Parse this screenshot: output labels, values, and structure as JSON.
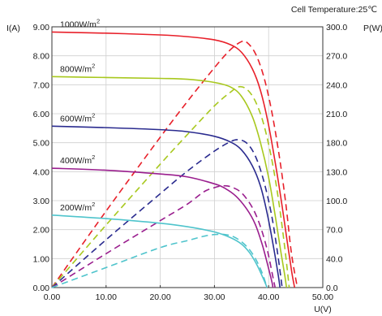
{
  "chart_data": {
    "type": "line",
    "header_note": "Cell Temperature:25℃",
    "xlabel": "U(V)",
    "ylabel_left": "I(A)",
    "ylabel_right": "P(W)",
    "xlim": [
      0,
      50
    ],
    "ylim_left": [
      0,
      9
    ],
    "ylim_right": [
      0,
      300
    ],
    "x_ticks": [
      "0.00",
      "10.00",
      "20.00",
      "30.00",
      "40.00",
      "50.00"
    ],
    "y_left_ticks": [
      "0.00",
      "1.00",
      "2.00",
      "3.00",
      "4.00",
      "5.00",
      "6.00",
      "7.00",
      "8.00",
      "9.00"
    ],
    "y_right_ticks": [
      "0.0",
      "40.0",
      "70.0",
      "100.0",
      "130.0",
      "180.0",
      "210.0",
      "240.0",
      "270.0",
      "300.0"
    ],
    "grid": true,
    "series": [
      {
        "label_text": "1000W/m",
        "label_sup": "2",
        "color": "#e8202a",
        "iv": [
          [
            0,
            8.82
          ],
          [
            10,
            8.78
          ],
          [
            20,
            8.72
          ],
          [
            25,
            8.66
          ],
          [
            30,
            8.55
          ],
          [
            33,
            8.38
          ],
          [
            35,
            8.12
          ],
          [
            37,
            7.55
          ],
          [
            38.5,
            6.8
          ],
          [
            40,
            5.6
          ],
          [
            41.5,
            4.0
          ],
          [
            42.5,
            2.8
          ],
          [
            43.5,
            1.5
          ],
          [
            44.3,
            0.5
          ],
          [
            44.8,
            0
          ]
        ],
        "pv": [
          [
            0,
            0
          ],
          [
            10,
            88
          ],
          [
            20,
            173
          ],
          [
            25,
            214
          ],
          [
            30,
            253
          ],
          [
            33,
            274
          ],
          [
            35,
            283
          ],
          [
            36,
            282
          ],
          [
            37.5,
            270
          ],
          [
            39,
            245
          ],
          [
            40.5,
            205
          ],
          [
            42,
            150
          ],
          [
            43.2,
            95
          ],
          [
            44.2,
            40
          ],
          [
            45.3,
            0
          ]
        ]
      },
      {
        "label_text": "800W/m",
        "label_sup": "2",
        "color": "#a8c81e",
        "iv": [
          [
            0,
            7.28
          ],
          [
            10,
            7.25
          ],
          [
            20,
            7.22
          ],
          [
            25,
            7.19
          ],
          [
            30,
            7.08
          ],
          [
            33,
            6.92
          ],
          [
            35,
            6.6
          ],
          [
            37,
            5.9
          ],
          [
            38.5,
            5.0
          ],
          [
            40,
            3.8
          ],
          [
            41.2,
            2.5
          ],
          [
            42.2,
            1.3
          ],
          [
            43,
            0.4
          ],
          [
            43.3,
            0
          ]
        ],
        "pv": [
          [
            0,
            0
          ],
          [
            10,
            72
          ],
          [
            20,
            142
          ],
          [
            25,
            176
          ],
          [
            30,
            209
          ],
          [
            33,
            225
          ],
          [
            34.5,
            231
          ],
          [
            36,
            228
          ],
          [
            37.5,
            215
          ],
          [
            39,
            190
          ],
          [
            40.5,
            150
          ],
          [
            41.8,
            102
          ],
          [
            43,
            45
          ],
          [
            43.8,
            0
          ]
        ]
      },
      {
        "label_text": "600W/m",
        "label_sup": "2",
        "color": "#2a2b8f",
        "iv": [
          [
            0,
            5.57
          ],
          [
            10,
            5.52
          ],
          [
            20,
            5.45
          ],
          [
            25,
            5.38
          ],
          [
            30,
            5.22
          ],
          [
            33,
            5.02
          ],
          [
            35,
            4.75
          ],
          [
            37,
            4.2
          ],
          [
            38.5,
            3.5
          ],
          [
            39.8,
            2.5
          ],
          [
            41,
            1.3
          ],
          [
            41.8,
            0.4
          ],
          [
            42.1,
            0
          ]
        ],
        "pv": [
          [
            0,
            0
          ],
          [
            10,
            55
          ],
          [
            20,
            108
          ],
          [
            25,
            134
          ],
          [
            30,
            157
          ],
          [
            33,
            168
          ],
          [
            34.5,
            170
          ],
          [
            36,
            166
          ],
          [
            37.5,
            152
          ],
          [
            39,
            125
          ],
          [
            40.5,
            85
          ],
          [
            41.6,
            42
          ],
          [
            42.5,
            0
          ]
        ]
      },
      {
        "label_text": "400W/m",
        "label_sup": "2",
        "color": "#9a1e8e",
        "iv": [
          [
            0,
            4.12
          ],
          [
            10,
            4.05
          ],
          [
            20,
            3.92
          ],
          [
            25,
            3.82
          ],
          [
            30,
            3.58
          ],
          [
            32,
            3.42
          ],
          [
            34,
            3.15
          ],
          [
            36,
            2.7
          ],
          [
            37.5,
            2.2
          ],
          [
            38.8,
            1.5
          ],
          [
            39.8,
            0.8
          ],
          [
            40.6,
            0.2
          ],
          [
            40.8,
            0
          ]
        ],
        "pv": [
          [
            0,
            0
          ],
          [
            10,
            39
          ],
          [
            20,
            77
          ],
          [
            25,
            96
          ],
          [
            28,
            110
          ],
          [
            30,
            115
          ],
          [
            31.5,
            117
          ],
          [
            33,
            116
          ],
          [
            35,
            109
          ],
          [
            37,
            92
          ],
          [
            38.5,
            70
          ],
          [
            39.8,
            42
          ],
          [
            40.7,
            15
          ],
          [
            41.2,
            0
          ]
        ]
      },
      {
        "label_text": "200W/m",
        "label_sup": "2",
        "color": "#4fc4cc",
        "iv": [
          [
            0,
            2.5
          ],
          [
            10,
            2.38
          ],
          [
            20,
            2.22
          ],
          [
            25,
            2.1
          ],
          [
            30,
            1.92
          ],
          [
            33,
            1.72
          ],
          [
            35,
            1.5
          ],
          [
            36.5,
            1.2
          ],
          [
            37.8,
            0.8
          ],
          [
            38.8,
            0.4
          ],
          [
            39.5,
            0.1
          ],
          [
            39.7,
            0
          ]
        ],
        "pv": [
          [
            0,
            0
          ],
          [
            10,
            23
          ],
          [
            20,
            46
          ],
          [
            25,
            54
          ],
          [
            28,
            59
          ],
          [
            30,
            61
          ],
          [
            32,
            61
          ],
          [
            34,
            57
          ],
          [
            36,
            47
          ],
          [
            37.5,
            34
          ],
          [
            38.8,
            17
          ],
          [
            39.7,
            0
          ]
        ]
      }
    ]
  }
}
